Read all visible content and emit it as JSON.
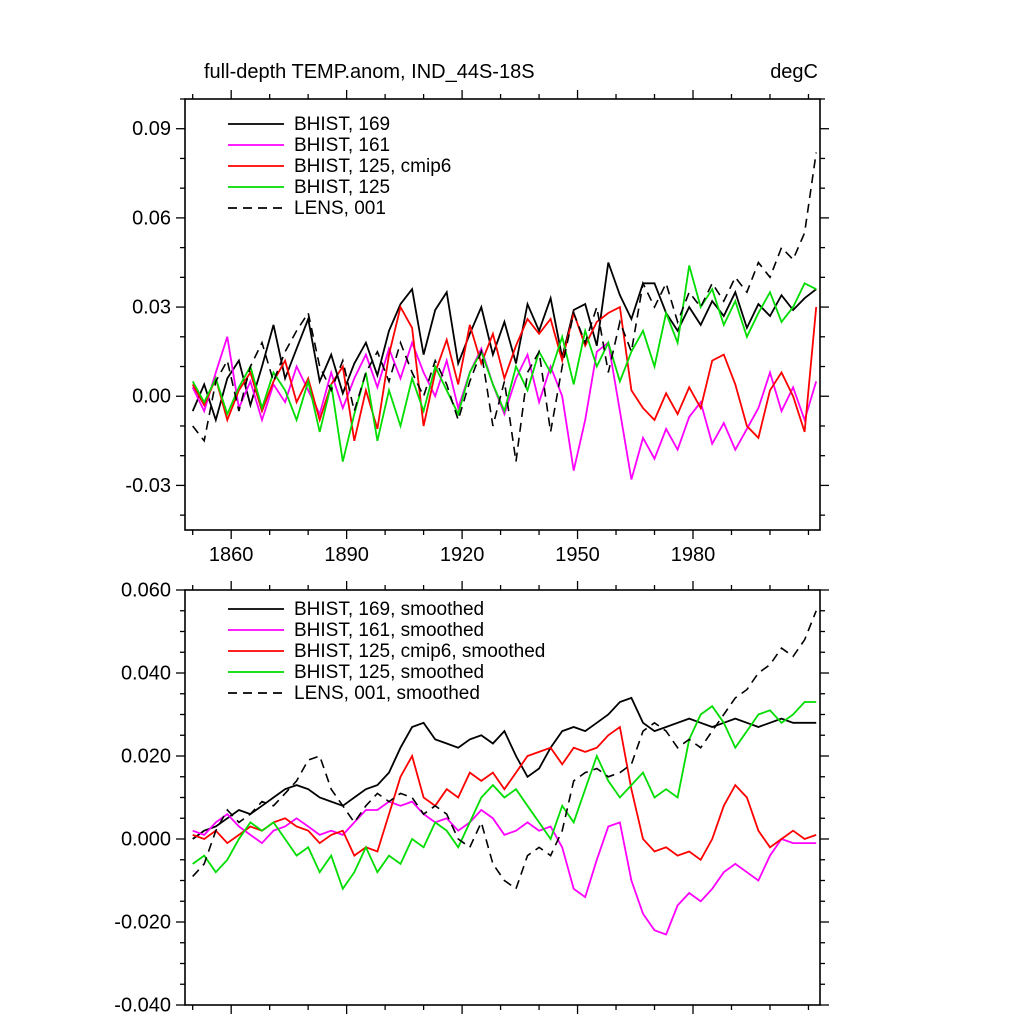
{
  "header": {
    "title": "full-depth TEMP.anom, IND_44S-18S",
    "units": "degC"
  },
  "colors": {
    "background": "#ffffff",
    "axis": "#000000",
    "black": "#000000",
    "magenta": "#ff00ff",
    "red": "#ff0000",
    "green": "#00dd00"
  },
  "chart_data": [
    {
      "type": "line",
      "title": "full-depth TEMP.anom, IND_44S-18S",
      "units": "degC",
      "xlabel": "",
      "ylabel": "",
      "grid": false,
      "legend_position": "top-left",
      "xlim": [
        1848,
        2013
      ],
      "ylim": [
        -0.045,
        0.1
      ],
      "xticks": [
        1860,
        1890,
        1920,
        1950,
        1980
      ],
      "xtick_labels": [
        "1860",
        "1890",
        "1920",
        "1950",
        "1980"
      ],
      "show_xtick_labels": true,
      "xminor_step": 10,
      "yticks": [
        -0.03,
        0.0,
        0.03,
        0.06,
        0.09
      ],
      "ytick_labels": [
        "-0.03",
        "0.00",
        "0.03",
        "0.06",
        "0.09"
      ],
      "yminor_step": 0.01,
      "x": [
        1850,
        1853,
        1856,
        1859,
        1862,
        1865,
        1868,
        1871,
        1874,
        1877,
        1880,
        1883,
        1886,
        1889,
        1892,
        1895,
        1898,
        1901,
        1904,
        1907,
        1910,
        1913,
        1916,
        1919,
        1922,
        1925,
        1928,
        1931,
        1934,
        1937,
        1940,
        1943,
        1946,
        1949,
        1952,
        1955,
        1958,
        1961,
        1964,
        1967,
        1970,
        1973,
        1976,
        1979,
        1982,
        1985,
        1988,
        1991,
        1994,
        1997,
        2000,
        2003,
        2006,
        2009,
        2012
      ],
      "series": [
        {
          "name": "BHIST, 169",
          "color": "#000000",
          "style": "solid",
          "values": [
            -0.005,
            0.004,
            -0.008,
            0.006,
            0.012,
            -0.003,
            0.01,
            0.024,
            0.006,
            0.016,
            0.026,
            0.005,
            0.014,
            0.001,
            0.011,
            0.018,
            0.007,
            0.022,
            0.031,
            0.036,
            0.014,
            0.029,
            0.035,
            0.011,
            0.021,
            0.03,
            0.014,
            0.025,
            0.011,
            0.031,
            0.022,
            0.033,
            0.013,
            0.029,
            0.031,
            0.017,
            0.045,
            0.034,
            0.026,
            0.038,
            0.038,
            0.028,
            0.022,
            0.03,
            0.024,
            0.032,
            0.027,
            0.035,
            0.023,
            0.031,
            0.027,
            0.034,
            0.029,
            0.033,
            0.036
          ]
        },
        {
          "name": "BHIST, 161",
          "color": "#ff00ff",
          "style": "solid",
          "values": [
            0.003,
            -0.005,
            0.008,
            0.02,
            -0.004,
            0.005,
            -0.008,
            0.004,
            -0.002,
            0.01,
            0.002,
            -0.006,
            0.008,
            -0.004,
            0.006,
            0.014,
            0.003,
            0.016,
            0.006,
            0.018,
            0.008,
            0.0,
            0.012,
            -0.004,
            0.008,
            0.016,
            0.004,
            -0.006,
            0.006,
            0.014,
            -0.002,
            0.01,
            0.0,
            -0.025,
            -0.008,
            0.015,
            0.018,
            -0.005,
            -0.028,
            -0.014,
            -0.021,
            -0.011,
            -0.018,
            -0.007,
            -0.002,
            -0.016,
            -0.009,
            -0.018,
            -0.011,
            -0.004,
            0.008,
            -0.005,
            0.003,
            -0.008,
            0.005
          ]
        },
        {
          "name": "BHIST, 125, cmip6",
          "color": "#ff0000",
          "style": "solid",
          "values": [
            0.004,
            -0.003,
            0.006,
            -0.008,
            0.002,
            0.008,
            -0.005,
            0.005,
            0.012,
            -0.002,
            0.006,
            -0.008,
            0.004,
            0.01,
            -0.015,
            0.002,
            -0.011,
            0.014,
            0.03,
            0.023,
            -0.01,
            0.008,
            0.019,
            0.004,
            0.024,
            0.011,
            0.021,
            0.006,
            0.017,
            0.026,
            0.021,
            0.026,
            0.012,
            0.028,
            0.017,
            0.025,
            0.028,
            0.03,
            0.002,
            -0.004,
            -0.008,
            0.001,
            -0.006,
            0.003,
            -0.004,
            0.012,
            0.014,
            0.004,
            -0.01,
            -0.014,
            0.002,
            0.008,
            0.0,
            -0.012,
            0.03
          ]
        },
        {
          "name": "BHIST, 125",
          "color": "#00dd00",
          "style": "solid",
          "values": [
            0.005,
            -0.002,
            0.006,
            -0.006,
            0.003,
            0.01,
            -0.004,
            0.008,
            0.002,
            -0.008,
            0.005,
            -0.012,
            0.004,
            -0.022,
            -0.006,
            0.008,
            -0.015,
            0.002,
            -0.01,
            0.006,
            -0.005,
            0.01,
            0.002,
            -0.006,
            0.008,
            0.015,
            0.004,
            -0.005,
            0.01,
            0.002,
            0.015,
            0.008,
            0.02,
            0.004,
            0.022,
            0.01,
            0.018,
            0.005,
            0.015,
            0.022,
            0.01,
            0.028,
            0.018,
            0.044,
            0.03,
            0.036,
            0.024,
            0.032,
            0.02,
            0.028,
            0.035,
            0.025,
            0.03,
            0.038,
            0.036
          ]
        },
        {
          "name": "LENS, 001",
          "color": "#000000",
          "style": "dashed",
          "values": [
            -0.01,
            -0.015,
            0.005,
            0.012,
            -0.005,
            0.01,
            0.018,
            0.005,
            0.015,
            0.022,
            0.028,
            0.01,
            0.002,
            0.012,
            -0.005,
            0.008,
            0.015,
            0.005,
            0.018,
            0.008,
            0.0,
            0.012,
            0.004,
            -0.008,
            0.005,
            0.015,
            -0.01,
            0.005,
            -0.022,
            0.008,
            0.015,
            -0.012,
            0.01,
            0.028,
            0.018,
            0.03,
            0.008,
            0.025,
            0.015,
            0.038,
            0.03,
            0.038,
            0.025,
            0.035,
            0.03,
            0.038,
            0.032,
            0.04,
            0.035,
            0.045,
            0.04,
            0.05,
            0.046,
            0.055,
            0.082
          ]
        }
      ]
    },
    {
      "type": "line",
      "title": "",
      "units": "degC",
      "xlabel": "",
      "ylabel": "",
      "grid": false,
      "legend_position": "top-left",
      "xlim": [
        1848,
        2013
      ],
      "ylim": [
        -0.04,
        0.06
      ],
      "xticks": [
        1860,
        1890,
        1920,
        1950,
        1980
      ],
      "xtick_labels": [
        "1860",
        "1890",
        "1920",
        "1950",
        "1980"
      ],
      "show_xtick_labels": false,
      "xminor_step": 10,
      "yticks": [
        -0.04,
        -0.02,
        0.0,
        0.02,
        0.04,
        0.06
      ],
      "ytick_labels": [
        "-0.040",
        "-0.020",
        "0.000",
        "0.020",
        "0.040",
        "0.060"
      ],
      "yminor_step": 0.005,
      "x": [
        1850,
        1853,
        1856,
        1859,
        1862,
        1865,
        1868,
        1871,
        1874,
        1877,
        1880,
        1883,
        1886,
        1889,
        1892,
        1895,
        1898,
        1901,
        1904,
        1907,
        1910,
        1913,
        1916,
        1919,
        1922,
        1925,
        1928,
        1931,
        1934,
        1937,
        1940,
        1943,
        1946,
        1949,
        1952,
        1955,
        1958,
        1961,
        1964,
        1967,
        1970,
        1973,
        1976,
        1979,
        1982,
        1985,
        1988,
        1991,
        1994,
        1997,
        2000,
        2003,
        2006,
        2009,
        2012
      ],
      "series": [
        {
          "name": "BHIST, 169, smoothed",
          "color": "#000000",
          "style": "solid",
          "values": [
            0.0,
            0.002,
            0.003,
            0.005,
            0.007,
            0.006,
            0.008,
            0.01,
            0.012,
            0.013,
            0.012,
            0.01,
            0.009,
            0.008,
            0.01,
            0.012,
            0.013,
            0.016,
            0.022,
            0.027,
            0.028,
            0.024,
            0.023,
            0.022,
            0.024,
            0.025,
            0.023,
            0.026,
            0.02,
            0.015,
            0.017,
            0.022,
            0.026,
            0.027,
            0.026,
            0.028,
            0.03,
            0.033,
            0.034,
            0.028,
            0.026,
            0.027,
            0.028,
            0.029,
            0.028,
            0.027,
            0.028,
            0.029,
            0.028,
            0.027,
            0.028,
            0.029,
            0.028,
            0.028,
            0.028
          ]
        },
        {
          "name": "BHIST, 161, smoothed",
          "color": "#ff00ff",
          "style": "solid",
          "values": [
            0.002,
            0.001,
            0.004,
            0.006,
            0.003,
            0.001,
            -0.001,
            0.002,
            0.003,
            0.005,
            0.003,
            0.001,
            0.002,
            0.001,
            0.004,
            0.007,
            0.007,
            0.009,
            0.008,
            0.009,
            0.006,
            0.004,
            0.005,
            0.002,
            0.004,
            0.007,
            0.005,
            0.001,
            0.002,
            0.004,
            0.002,
            0.003,
            -0.002,
            -0.012,
            -0.014,
            -0.005,
            0.003,
            0.004,
            -0.01,
            -0.018,
            -0.022,
            -0.023,
            -0.016,
            -0.013,
            -0.015,
            -0.012,
            -0.008,
            -0.006,
            -0.008,
            -0.01,
            -0.004,
            0.0,
            -0.001,
            -0.001,
            -0.001
          ]
        },
        {
          "name": "BHIST, 125, cmip6, smoothed",
          "color": "#ff0000",
          "style": "solid",
          "values": [
            0.001,
            0.0,
            0.002,
            -0.001,
            0.001,
            0.003,
            0.002,
            0.004,
            0.005,
            0.003,
            0.002,
            -0.001,
            0.001,
            0.002,
            -0.004,
            -0.002,
            -0.003,
            0.006,
            0.015,
            0.02,
            0.01,
            0.008,
            0.012,
            0.01,
            0.016,
            0.014,
            0.016,
            0.012,
            0.016,
            0.02,
            0.021,
            0.022,
            0.018,
            0.022,
            0.021,
            0.022,
            0.025,
            0.027,
            0.012,
            0.0,
            -0.003,
            -0.002,
            -0.004,
            -0.003,
            -0.005,
            0.0,
            0.008,
            0.013,
            0.01,
            0.002,
            -0.002,
            0.0,
            0.002,
            0.0,
            0.001
          ]
        },
        {
          "name": "BHIST, 125, smoothed",
          "color": "#00dd00",
          "style": "solid",
          "values": [
            -0.006,
            -0.004,
            -0.008,
            -0.005,
            0.0,
            0.004,
            0.002,
            0.004,
            0.0,
            -0.004,
            -0.002,
            -0.008,
            -0.004,
            -0.012,
            -0.008,
            -0.002,
            -0.008,
            -0.004,
            -0.006,
            0.0,
            -0.002,
            0.004,
            0.002,
            -0.002,
            0.004,
            0.01,
            0.013,
            0.01,
            0.012,
            0.008,
            0.004,
            0.0,
            0.008,
            0.004,
            0.012,
            0.02,
            0.014,
            0.01,
            0.013,
            0.016,
            0.01,
            0.012,
            0.01,
            0.024,
            0.03,
            0.032,
            0.028,
            0.022,
            0.026,
            0.03,
            0.031,
            0.028,
            0.03,
            0.033,
            0.033
          ]
        },
        {
          "name": "LENS, 001, smoothed",
          "color": "#000000",
          "style": "dashed",
          "values": [
            -0.009,
            -0.006,
            0.002,
            0.007,
            0.004,
            0.006,
            0.009,
            0.008,
            0.011,
            0.014,
            0.019,
            0.02,
            0.012,
            0.008,
            0.004,
            0.008,
            0.011,
            0.009,
            0.011,
            0.01,
            0.006,
            0.008,
            0.006,
            0.0,
            -0.002,
            0.004,
            -0.006,
            -0.01,
            -0.012,
            -0.004,
            -0.002,
            -0.004,
            0.002,
            0.014,
            0.016,
            0.017,
            0.015,
            0.016,
            0.018,
            0.026,
            0.028,
            0.026,
            0.022,
            0.024,
            0.022,
            0.026,
            0.03,
            0.034,
            0.036,
            0.04,
            0.042,
            0.046,
            0.044,
            0.048,
            0.055
          ]
        }
      ]
    }
  ]
}
